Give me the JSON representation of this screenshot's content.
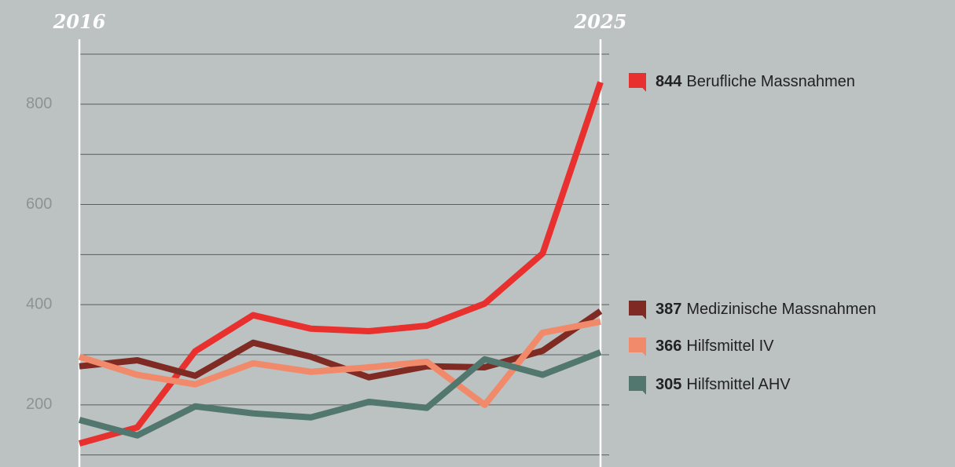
{
  "chart_data": {
    "type": "line",
    "categories": [
      "2016",
      null,
      null,
      null,
      null,
      null,
      null,
      null,
      null,
      "2025"
    ],
    "series": [
      {
        "name": "Berufliche Massnahmen",
        "color": "#e8312f",
        "values": [
          123,
          155,
          307,
          379,
          352,
          347,
          358,
          402,
          502,
          844
        ]
      },
      {
        "name": "Medizinische Massnahmen",
        "color": "#7f2a22",
        "values": [
          277,
          289,
          258,
          324,
          296,
          255,
          277,
          275,
          308,
          387
        ]
      },
      {
        "name": "Hilfsmittel IV",
        "color": "#f08a6a",
        "values": [
          296,
          260,
          241,
          283,
          266,
          275,
          286,
          200,
          344,
          366
        ]
      },
      {
        "name": "Hilfsmittel AHV",
        "color": "#52776f",
        "values": [
          170,
          139,
          197,
          183,
          175,
          206,
          194,
          291,
          260,
          305
        ]
      }
    ],
    "ylim": [
      76,
      1008
    ],
    "yticks": [
      200,
      400,
      600,
      800
    ],
    "minor_yticks": [
      100,
      300,
      500,
      700,
      900
    ],
    "grid": true
  }
}
